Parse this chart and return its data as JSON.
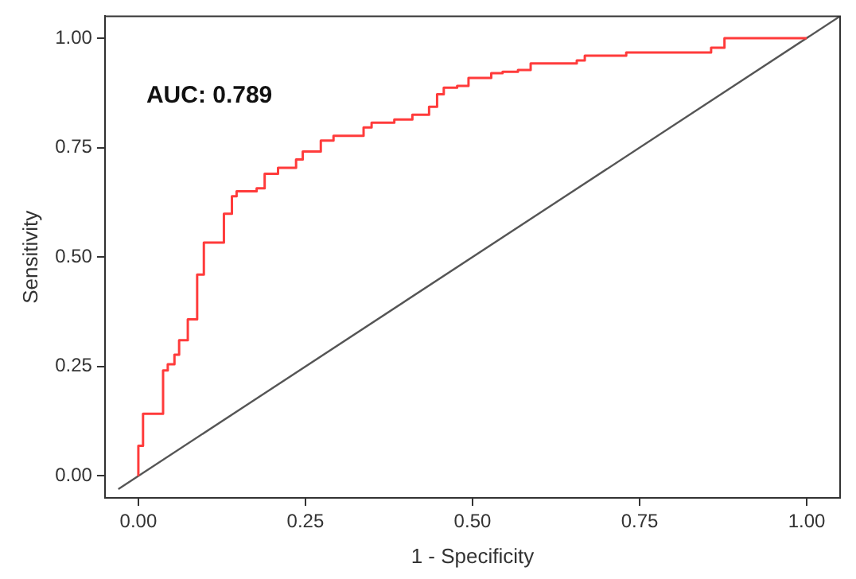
{
  "chart_data": {
    "type": "step",
    "xlabel": "1 - Specificity",
    "ylabel": "Sensitivity",
    "annotations": [
      "AUC: 0.789"
    ],
    "xlim": [
      -0.05,
      1.05
    ],
    "ylim": [
      -0.05,
      1.05
    ],
    "xticks": [
      {
        "value": 0,
        "label": "0.00"
      },
      {
        "value": 0.25,
        "label": "0.25"
      },
      {
        "value": 0.5,
        "label": "0.50"
      },
      {
        "value": 0.75,
        "label": "0.75"
      },
      {
        "value": 1,
        "label": "1.00"
      }
    ],
    "yticks": [
      {
        "value": 0,
        "label": "0.00"
      },
      {
        "value": 0.25,
        "label": "0.25"
      },
      {
        "value": 0.5,
        "label": "0.50"
      },
      {
        "value": 0.75,
        "label": "0.75"
      },
      {
        "value": 1,
        "label": "1.00"
      }
    ],
    "grid": false,
    "legend": false,
    "marker": "none",
    "series": [
      {
        "color": "#ff3b3b",
        "x": [
          0,
          0.007,
          0.037,
          0.044,
          0.054,
          0.061,
          0.074,
          0.088,
          0.098,
          0.128,
          0.14,
          0.147,
          0.177,
          0.189,
          0.209,
          0.236,
          0.246,
          0.273,
          0.292,
          0.337,
          0.349,
          0.383,
          0.41,
          0.435,
          0.447,
          0.457,
          0.477,
          0.494,
          0.528,
          0.545,
          0.568,
          0.587,
          0.656,
          0.668,
          0.73,
          0.857,
          0.877,
          0.902,
          1
        ],
        "values": [
          0,
          0.069,
          0.142,
          0.241,
          0.255,
          0.277,
          0.31,
          0.358,
          0.46,
          0.533,
          0.599,
          0.639,
          0.65,
          0.657,
          0.69,
          0.704,
          0.723,
          0.741,
          0.766,
          0.777,
          0.796,
          0.807,
          0.814,
          0.825,
          0.843,
          0.872,
          0.887,
          0.891,
          0.909,
          0.92,
          0.923,
          0.927,
          0.942,
          0.949,
          0.96,
          0.967,
          0.978,
          1,
          1
        ]
      },
      {
        "type": "line",
        "color": "#555555",
        "x": [
          -0.03,
          1.05
        ],
        "values": [
          -0.03,
          1.05
        ]
      }
    ]
  }
}
